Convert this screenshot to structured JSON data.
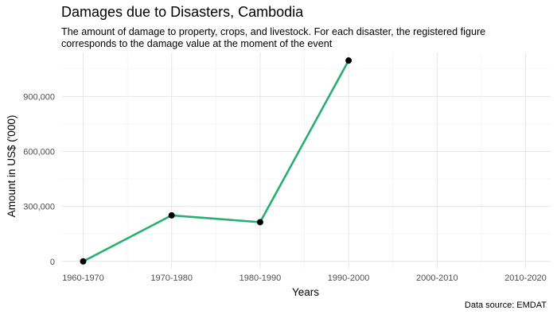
{
  "chart_data": {
    "type": "line",
    "title": "Damages due to Disasters, Cambodia",
    "subtitle": "The amount of damage to property, crops, and livestock. For each disaster, the registered figure corresponds to the damage value at the moment of the event",
    "caption": "Data source: EMDAT",
    "xlabel": "Years",
    "ylabel": "Amount in US$ ('000)",
    "categories": [
      "1960-1970",
      "1970-1980",
      "1980-1990",
      "1990-2000",
      "2000-2010",
      "2010-2020"
    ],
    "series": [
      {
        "values": [
          0,
          251000,
          214000,
          1096000,
          null,
          null
        ],
        "color": "#27ae71"
      }
    ],
    "y_ticks": [
      0,
      300000,
      600000,
      900000
    ],
    "y_tick_labels": [
      "0",
      "300,000",
      "600,000",
      "900,000"
    ],
    "ylim": [
      -40000,
      1140000
    ],
    "grid": true,
    "legend": "none",
    "point_color": "#000000"
  }
}
